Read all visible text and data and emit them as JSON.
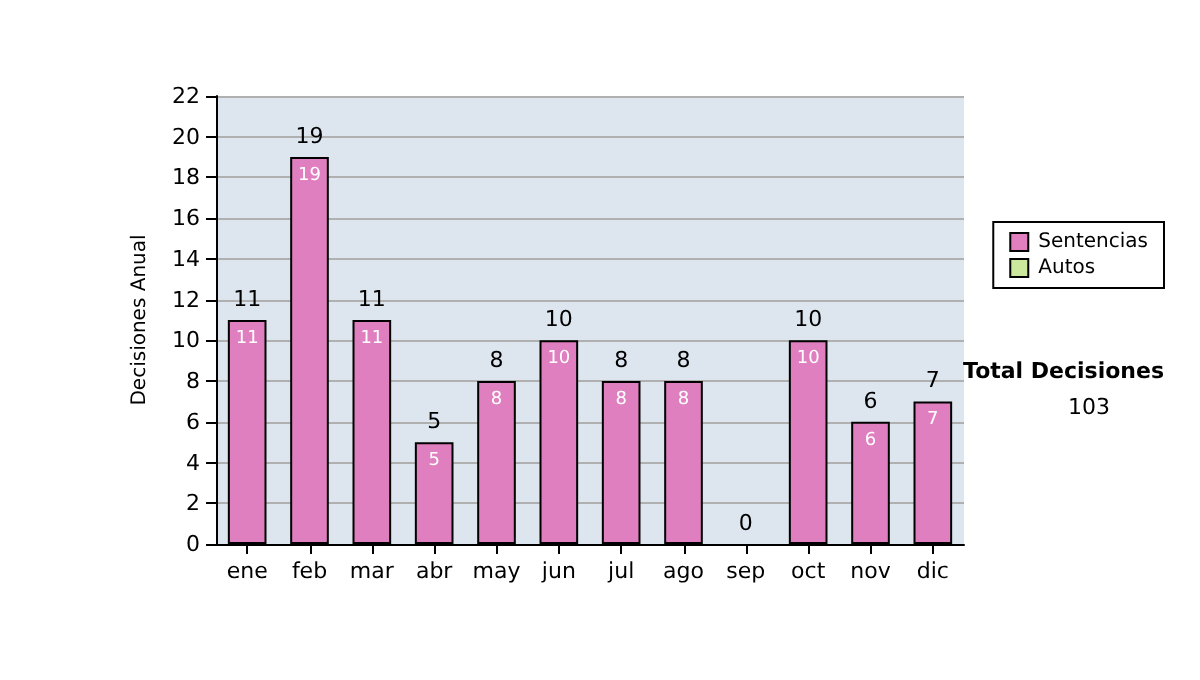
{
  "chart_data": {
    "type": "bar",
    "ylabel": "Decisiones Anual",
    "categories": [
      "ene",
      "feb",
      "mar",
      "abr",
      "may",
      "jun",
      "jul",
      "ago",
      "sep",
      "oct",
      "nov",
      "dic"
    ],
    "stacked": true,
    "series": [
      {
        "name": "Sentencias",
        "color": "#e07fc0",
        "values": [
          11,
          19,
          11,
          5,
          8,
          10,
          8,
          8,
          0,
          10,
          6,
          7
        ],
        "value_labels": [
          "11",
          "19",
          "11",
          "5",
          "8",
          "10",
          "8",
          "8",
          null,
          "10",
          "6",
          "7"
        ]
      },
      {
        "name": "Autos",
        "color": "#cce89c",
        "values": [
          0,
          0,
          0,
          0,
          0,
          0,
          0,
          0,
          0,
          0,
          0,
          0
        ]
      }
    ],
    "totals": [
      "11",
      "19",
      "11",
      "5",
      "8",
      "10",
      "8",
      "8",
      "0",
      "10",
      "6",
      "7"
    ],
    "ylim": [
      0,
      22
    ],
    "yticks": [
      0,
      2,
      4,
      6,
      8,
      10,
      12,
      14,
      16,
      18,
      20,
      22
    ],
    "grid": "y",
    "legend": "right",
    "annotations": [
      "Total Decisiones",
      "103"
    ]
  }
}
